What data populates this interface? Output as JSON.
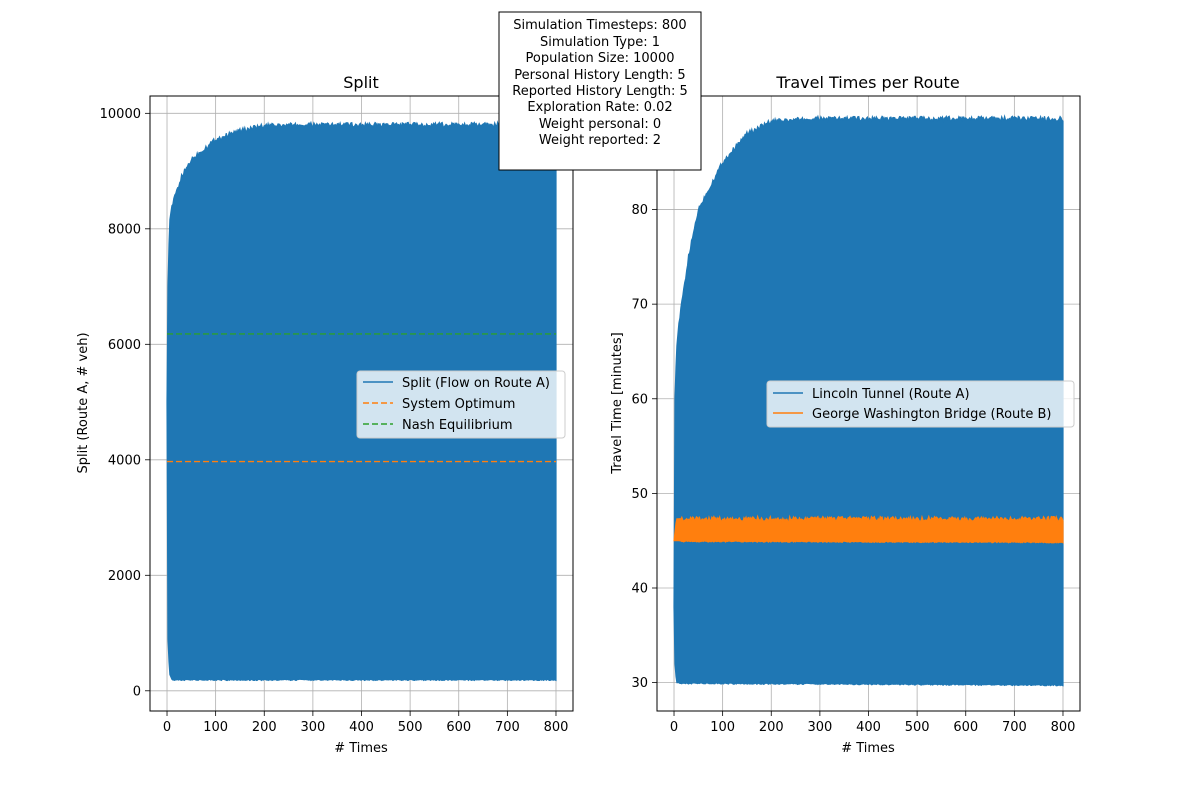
{
  "info_box": {
    "lines": [
      "Simulation Timesteps: 800",
      "Simulation Type: 1",
      "Population Size: 10000",
      "Personal History Length: 5",
      "Reported History Length: 5",
      "Exploration Rate: 0.02",
      "Weight personal: 0",
      "Weight reported: 2"
    ]
  },
  "chart_data": [
    {
      "type": "line",
      "title": "Split",
      "xlabel": "# Times",
      "ylabel": "Split (Route A, # veh)",
      "xlim": [
        -35,
        835
      ],
      "ylim": [
        -350,
        10300
      ],
      "xticks": [
        0,
        100,
        200,
        300,
        400,
        500,
        600,
        700,
        800
      ],
      "yticks": [
        0,
        2000,
        4000,
        6000,
        8000,
        10000
      ],
      "grid": true,
      "legend_position": "center-right",
      "series": [
        {
          "name": "Split (Flow on Route A)",
          "color": "#1f77b4",
          "style": "solid",
          "kind": "oscillating-band",
          "start": 5000,
          "lower_envelope": [
            [
              0,
              5000
            ],
            [
              2,
              900
            ],
            [
              5,
              300
            ],
            [
              10,
              200
            ],
            [
              800,
              200
            ]
          ],
          "upper_envelope": [
            [
              0,
              5000
            ],
            [
              2,
              7000
            ],
            [
              5,
              8100
            ],
            [
              10,
              8400
            ],
            [
              30,
              8900
            ],
            [
              50,
              9200
            ],
            [
              100,
              9550
            ],
            [
              150,
              9700
            ],
            [
              200,
              9780
            ],
            [
              300,
              9800
            ],
            [
              800,
              9800
            ]
          ]
        },
        {
          "name": "System Optimum",
          "color": "#ff7f0e",
          "style": "dashed",
          "kind": "constant",
          "value": 3970
        },
        {
          "name": "Nash Equilibrium",
          "color": "#2ca02c",
          "style": "dashed",
          "kind": "constant",
          "value": 6180
        }
      ]
    },
    {
      "type": "line",
      "title": "Travel Times per Route",
      "xlabel": "# Times",
      "ylabel": "Travel Time [minutes]",
      "xlim": [
        -35,
        835
      ],
      "ylim": [
        27,
        92
      ],
      "xticks": [
        0,
        100,
        200,
        300,
        400,
        500,
        600,
        700,
        800
      ],
      "yticks": [
        30,
        40,
        50,
        60,
        70,
        80
      ],
      "grid": true,
      "legend_position": "center-right",
      "series": [
        {
          "name": "Lincoln Tunnel (Route A)",
          "color": "#1f77b4",
          "style": "solid",
          "kind": "oscillating-band",
          "start": 38,
          "lower_envelope": [
            [
              0,
              38
            ],
            [
              2,
              32
            ],
            [
              5,
              30
            ],
            [
              800,
              29.8
            ]
          ],
          "upper_envelope": [
            [
              0,
              38
            ],
            [
              2,
              60
            ],
            [
              5,
              65
            ],
            [
              10,
              68
            ],
            [
              30,
              75
            ],
            [
              50,
              80
            ],
            [
              100,
              85
            ],
            [
              150,
              88
            ],
            [
              200,
              89.3
            ],
            [
              300,
              89.6
            ],
            [
              800,
              89.6
            ]
          ]
        },
        {
          "name": "George Washington Bridge (Route B)",
          "color": "#ff7f0e",
          "style": "solid",
          "kind": "oscillating-band",
          "start": 45,
          "lower_envelope": [
            [
              0,
              45
            ],
            [
              800,
              44.9
            ]
          ],
          "upper_envelope": [
            [
              0,
              45
            ],
            [
              5,
              47.3
            ],
            [
              800,
              47.3
            ]
          ]
        }
      ]
    }
  ]
}
